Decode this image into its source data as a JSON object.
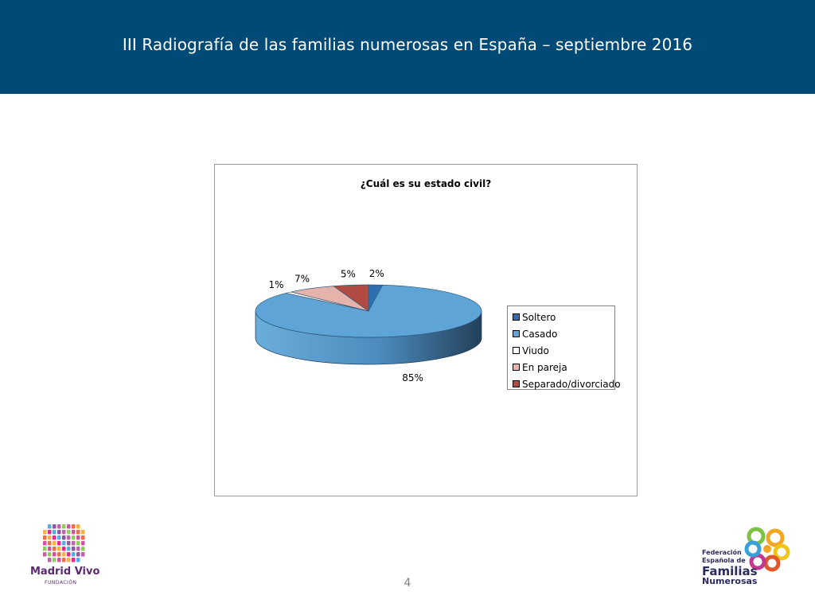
{
  "header": {
    "title": "III Radiografía de las familias numerosas en España – septiembre 2016"
  },
  "chart_data": {
    "type": "pie",
    "title": "¿Cuál es su estado civil?",
    "categories": [
      "Soltero",
      "Casado",
      "Viudo",
      "En pareja",
      "Separado/divorciado"
    ],
    "values": [
      2,
      85,
      1,
      7,
      5
    ],
    "labels": [
      "2%",
      "85%",
      "1%",
      "7%",
      "5%"
    ],
    "colors": [
      "#2e6fb0",
      "#5ea4d6",
      "#ffffff",
      "#e6b3ab",
      "#b14a40"
    ],
    "legend_position": "right",
    "style": "3d"
  },
  "footer": {
    "page_number": "4",
    "logo_left_name": "Madrid Vivo",
    "logo_left_sub": "FUNDACIÓN",
    "logo_right_line1": "Federación",
    "logo_right_line2": "Española de",
    "logo_right_line3": "Familias",
    "logo_right_line4": "Numerosas"
  }
}
